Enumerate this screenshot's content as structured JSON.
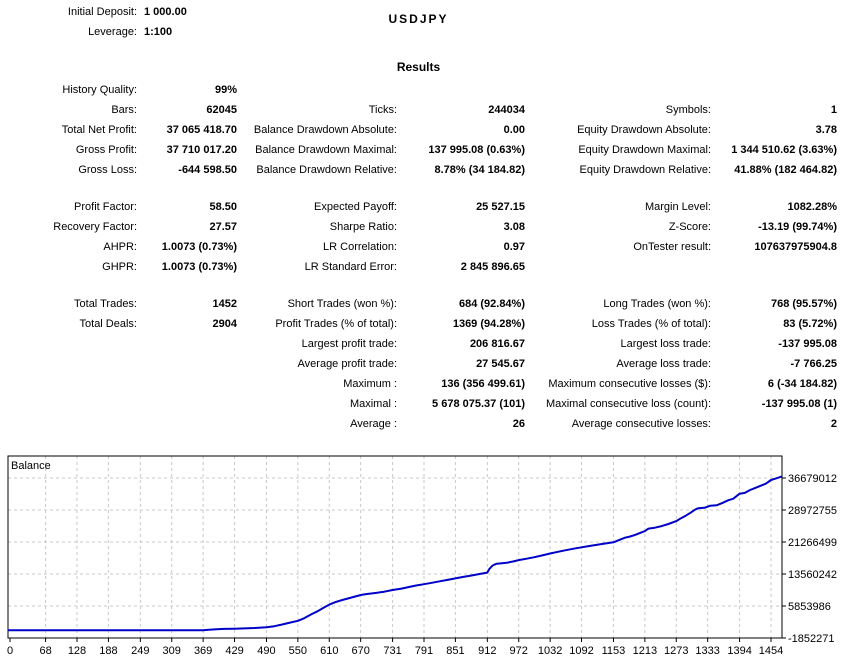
{
  "header": {
    "initial_deposit_label": "Initial Deposit:",
    "initial_deposit": "1 000.00",
    "leverage_label": "Leverage:",
    "leverage": "1:100",
    "symbol": "USDJPY"
  },
  "results": {
    "title": "Results",
    "sections": [
      {
        "rows": [
          [
            "History Quality:",
            "99%",
            "",
            "",
            "",
            ""
          ],
          [
            "Bars:",
            "62045",
            "Ticks:",
            "244034",
            "Symbols:",
            "1"
          ],
          [
            "Total Net Profit:",
            "37 065 418.70",
            "Balance Drawdown Absolute:",
            "0.00",
            "Equity Drawdown Absolute:",
            "3.78"
          ],
          [
            "Gross Profit:",
            "37 710 017.20",
            "Balance Drawdown Maximal:",
            "137 995.08 (0.63%)",
            "Equity Drawdown Maximal:",
            "1 344 510.62 (3.63%)"
          ],
          [
            "Gross Loss:",
            "-644 598.50",
            "Balance Drawdown Relative:",
            "8.78% (34 184.82)",
            "Equity Drawdown Relative:",
            "41.88% (182 464.82)"
          ]
        ]
      },
      {
        "rows": [
          [
            "Profit Factor:",
            "58.50",
            "Expected Payoff:",
            "25 527.15",
            "Margin Level:",
            "1082.28%"
          ],
          [
            "Recovery Factor:",
            "27.57",
            "Sharpe Ratio:",
            "3.08",
            "Z-Score:",
            "-13.19 (99.74%)"
          ],
          [
            "AHPR:",
            "1.0073 (0.73%)",
            "LR Correlation:",
            "0.97",
            "OnTester result:",
            "107637975904.8"
          ],
          [
            "GHPR:",
            "1.0073 (0.73%)",
            "LR Standard Error:",
            "2 845 896.65",
            "",
            ""
          ]
        ]
      },
      {
        "rows": [
          [
            "Total Trades:",
            "1452",
            "Short Trades (won %):",
            "684 (92.84%)",
            "Long Trades (won %):",
            "768 (95.57%)"
          ],
          [
            "Total Deals:",
            "2904",
            "Profit Trades (% of total):",
            "1369 (94.28%)",
            "Loss Trades (% of total):",
            "83 (5.72%)"
          ],
          [
            "",
            "",
            "Largest profit trade:",
            "206 816.67",
            "Largest loss trade:",
            "-137 995.08"
          ],
          [
            "",
            "",
            "Average profit trade:",
            "27 545.67",
            "Average loss trade:",
            "-7 766.25"
          ],
          [
            "",
            "",
            "Maximum :",
            "136 (356 499.61)",
            "Maximum consecutive losses ($):",
            "6 (-34 184.82)"
          ],
          [
            "",
            "",
            "Maximal :",
            "5 678 075.37 (101)",
            "Maximal consecutive loss (count):",
            "-137 995.08 (1)"
          ],
          [
            "",
            "",
            "Average :",
            "26",
            "Average consecutive losses:",
            "2"
          ]
        ]
      }
    ]
  },
  "chart_data": {
    "type": "line",
    "title": "Balance",
    "legend_position": "top-left-inside",
    "grid": true,
    "line_color": "#0000C8",
    "grid_color": "#C8C8C8",
    "x_ticks": [
      0,
      68,
      128,
      188,
      249,
      309,
      369,
      429,
      490,
      550,
      610,
      670,
      731,
      791,
      851,
      912,
      972,
      1032,
      1092,
      1153,
      1213,
      1273,
      1333,
      1394,
      1454
    ],
    "y_ticks": [
      36679012,
      28972755,
      21266499,
      13560242,
      5853986,
      -1852271
    ],
    "xlim": [
      0,
      1475
    ],
    "ylim": [
      -1852271,
      36679012
    ],
    "series": [
      {
        "name": "Balance",
        "points": [
          [
            0,
            1000
          ],
          [
            300,
            1000
          ],
          [
            369,
            1000
          ],
          [
            380,
            120000
          ],
          [
            395,
            260000
          ],
          [
            410,
            330000
          ],
          [
            429,
            380000
          ],
          [
            448,
            450000
          ],
          [
            468,
            560000
          ],
          [
            490,
            750000
          ],
          [
            505,
            1000000
          ],
          [
            520,
            1400000
          ],
          [
            535,
            1850000
          ],
          [
            550,
            2300000
          ],
          [
            562,
            2900000
          ],
          [
            575,
            3800000
          ],
          [
            588,
            4600000
          ],
          [
            600,
            5500000
          ],
          [
            610,
            6200000
          ],
          [
            622,
            6800000
          ],
          [
            635,
            7300000
          ],
          [
            650,
            7800000
          ],
          [
            670,
            8500000
          ],
          [
            682,
            8750000
          ],
          [
            700,
            9000000
          ],
          [
            715,
            9300000
          ],
          [
            731,
            9700000
          ],
          [
            748,
            10050000
          ],
          [
            761,
            10400000
          ],
          [
            776,
            10800000
          ],
          [
            791,
            11100000
          ],
          [
            806,
            11450000
          ],
          [
            821,
            11800000
          ],
          [
            836,
            12150000
          ],
          [
            851,
            12500000
          ],
          [
            866,
            12850000
          ],
          [
            882,
            13200000
          ],
          [
            897,
            13550000
          ],
          [
            912,
            13900000
          ],
          [
            916,
            14800000
          ],
          [
            922,
            15600000
          ],
          [
            930,
            16050000
          ],
          [
            940,
            16150000
          ],
          [
            951,
            16300000
          ],
          [
            962,
            16600000
          ],
          [
            972,
            16900000
          ],
          [
            987,
            17250000
          ],
          [
            1002,
            17600000
          ],
          [
            1017,
            18050000
          ],
          [
            1032,
            18500000
          ],
          [
            1047,
            18900000
          ],
          [
            1062,
            19300000
          ],
          [
            1077,
            19650000
          ],
          [
            1092,
            20000000
          ],
          [
            1107,
            20300000
          ],
          [
            1122,
            20600000
          ],
          [
            1137,
            20900000
          ],
          [
            1153,
            21200000
          ],
          [
            1163,
            21700000
          ],
          [
            1175,
            22300000
          ],
          [
            1185,
            22600000
          ],
          [
            1195,
            23000000
          ],
          [
            1205,
            23500000
          ],
          [
            1213,
            23900000
          ],
          [
            1220,
            24500000
          ],
          [
            1232,
            24700000
          ],
          [
            1245,
            25100000
          ],
          [
            1258,
            25600000
          ],
          [
            1273,
            26300000
          ],
          [
            1282,
            27000000
          ],
          [
            1291,
            27600000
          ],
          [
            1300,
            28300000
          ],
          [
            1308,
            29000000
          ],
          [
            1315,
            29400000
          ],
          [
            1327,
            29500000
          ],
          [
            1338,
            30000000
          ],
          [
            1350,
            30100000
          ],
          [
            1362,
            30700000
          ],
          [
            1372,
            31300000
          ],
          [
            1382,
            31700000
          ],
          [
            1394,
            32900000
          ],
          [
            1404,
            33100000
          ],
          [
            1414,
            33800000
          ],
          [
            1424,
            34300000
          ],
          [
            1434,
            34800000
          ],
          [
            1444,
            35300000
          ],
          [
            1454,
            36200000
          ],
          [
            1462,
            36500000
          ],
          [
            1475,
            37066419
          ]
        ]
      }
    ]
  }
}
